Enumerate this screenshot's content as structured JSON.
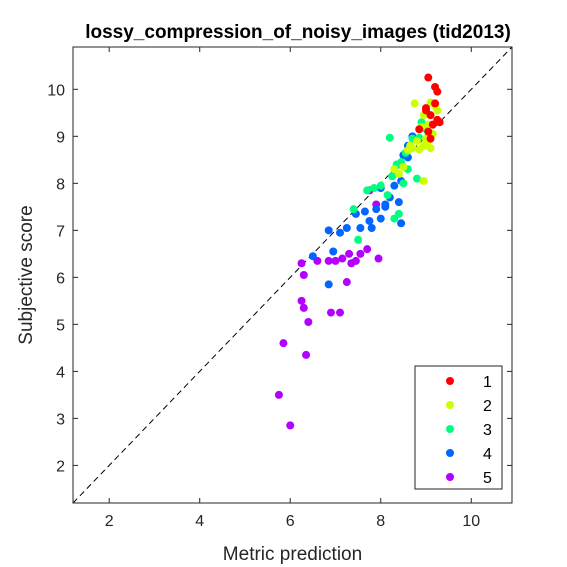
{
  "chart_data": {
    "type": "scatter",
    "title": "lossy_compression_of_noisy_images (tid2013)",
    "xlabel": "Metric prediction",
    "ylabel": "Subjective score",
    "xlim": [
      1.2,
      10.9
    ],
    "ylim": [
      1.2,
      10.9
    ],
    "xticks": [
      2,
      4,
      6,
      8,
      10
    ],
    "yticks": [
      2,
      3,
      4,
      5,
      6,
      7,
      8,
      9,
      10
    ],
    "grid": false,
    "legend_position": "bottom-right",
    "reference_line": {
      "style": "dashed",
      "from": [
        1.2,
        1.2
      ],
      "to": [
        10.9,
        10.9
      ]
    },
    "series": [
      {
        "name": "1",
        "color": "#ff0000",
        "points": [
          [
            9.05,
            10.25
          ],
          [
            9.2,
            10.05
          ],
          [
            9.25,
            9.95
          ],
          [
            9.2,
            9.7
          ],
          [
            9.0,
            9.6
          ],
          [
            9.1,
            9.45
          ],
          [
            9.3,
            9.3
          ],
          [
            9.15,
            9.25
          ],
          [
            8.85,
            9.15
          ],
          [
            9.05,
            9.1
          ],
          [
            9.1,
            8.95
          ],
          [
            9.25,
            9.35
          ],
          [
            9.0,
            9.55
          ]
        ]
      },
      {
        "name": "2",
        "color": "#ccff00",
        "points": [
          [
            8.75,
            9.7
          ],
          [
            9.1,
            9.72
          ],
          [
            9.2,
            9.65
          ],
          [
            9.0,
            9.5
          ],
          [
            9.25,
            9.55
          ],
          [
            8.95,
            9.45
          ],
          [
            9.3,
            9.3
          ],
          [
            9.05,
            9.25
          ],
          [
            8.9,
            9.2
          ],
          [
            9.15,
            9.05
          ],
          [
            9.0,
            8.95
          ],
          [
            8.8,
            8.9
          ],
          [
            8.95,
            8.8
          ],
          [
            9.1,
            8.75
          ],
          [
            8.6,
            8.7
          ],
          [
            8.7,
            8.75
          ],
          [
            8.85,
            8.72
          ],
          [
            8.3,
            8.3
          ],
          [
            8.5,
            8.35
          ],
          [
            8.95,
            8.05
          ],
          [
            8.4,
            8.2
          ],
          [
            9.05,
            8.9
          ],
          [
            8.65,
            8.8
          ]
        ]
      },
      {
        "name": "3",
        "color": "#00ff80",
        "points": [
          [
            8.2,
            8.97
          ],
          [
            8.7,
            8.95
          ],
          [
            8.85,
            8.97
          ],
          [
            9.0,
            9.15
          ],
          [
            8.9,
            9.3
          ],
          [
            9.05,
            9.0
          ],
          [
            8.55,
            8.65
          ],
          [
            8.45,
            8.45
          ],
          [
            8.35,
            8.4
          ],
          [
            8.3,
            8.3
          ],
          [
            8.25,
            8.15
          ],
          [
            8.5,
            8.0
          ],
          [
            7.85,
            7.9
          ],
          [
            8.0,
            7.95
          ],
          [
            8.15,
            7.75
          ],
          [
            7.7,
            7.85
          ],
          [
            7.4,
            7.45
          ],
          [
            8.4,
            7.35
          ],
          [
            8.3,
            7.25
          ],
          [
            7.5,
            6.8
          ],
          [
            8.8,
            8.1
          ],
          [
            8.6,
            8.3
          ]
        ]
      },
      {
        "name": "4",
        "color": "#0066ff",
        "points": [
          [
            8.7,
            9.0
          ],
          [
            8.6,
            8.8
          ],
          [
            8.5,
            8.6
          ],
          [
            8.4,
            8.4
          ],
          [
            8.3,
            8.2
          ],
          [
            8.45,
            8.05
          ],
          [
            8.3,
            7.95
          ],
          [
            8.0,
            7.9
          ],
          [
            8.2,
            7.7
          ],
          [
            8.4,
            7.6
          ],
          [
            8.1,
            7.5
          ],
          [
            7.9,
            7.45
          ],
          [
            7.65,
            7.4
          ],
          [
            7.45,
            7.35
          ],
          [
            7.75,
            7.2
          ],
          [
            8.0,
            7.25
          ],
          [
            8.45,
            7.15
          ],
          [
            7.55,
            7.05
          ],
          [
            7.25,
            7.05
          ],
          [
            7.1,
            6.95
          ],
          [
            6.85,
            7.0
          ],
          [
            6.5,
            6.45
          ],
          [
            6.95,
            6.55
          ],
          [
            6.85,
            5.85
          ],
          [
            8.6,
            8.55
          ],
          [
            8.1,
            7.55
          ],
          [
            7.8,
            7.05
          ]
        ]
      },
      {
        "name": "5",
        "color": "#b300ff",
        "points": [
          [
            7.75,
            7.85
          ],
          [
            7.9,
            7.55
          ],
          [
            7.7,
            6.6
          ],
          [
            7.55,
            6.5
          ],
          [
            7.3,
            6.5
          ],
          [
            7.15,
            6.4
          ],
          [
            7.35,
            6.3
          ],
          [
            7.0,
            6.35
          ],
          [
            6.85,
            6.35
          ],
          [
            6.6,
            6.35
          ],
          [
            6.25,
            6.3
          ],
          [
            7.95,
            6.4
          ],
          [
            6.3,
            6.05
          ],
          [
            7.25,
            5.9
          ],
          [
            6.25,
            5.5
          ],
          [
            6.3,
            5.35
          ],
          [
            6.9,
            5.25
          ],
          [
            7.1,
            5.25
          ],
          [
            6.4,
            5.05
          ],
          [
            5.85,
            4.6
          ],
          [
            6.35,
            4.35
          ],
          [
            5.75,
            3.5
          ],
          [
            6.0,
            2.85
          ],
          [
            7.45,
            6.35
          ]
        ]
      }
    ]
  }
}
